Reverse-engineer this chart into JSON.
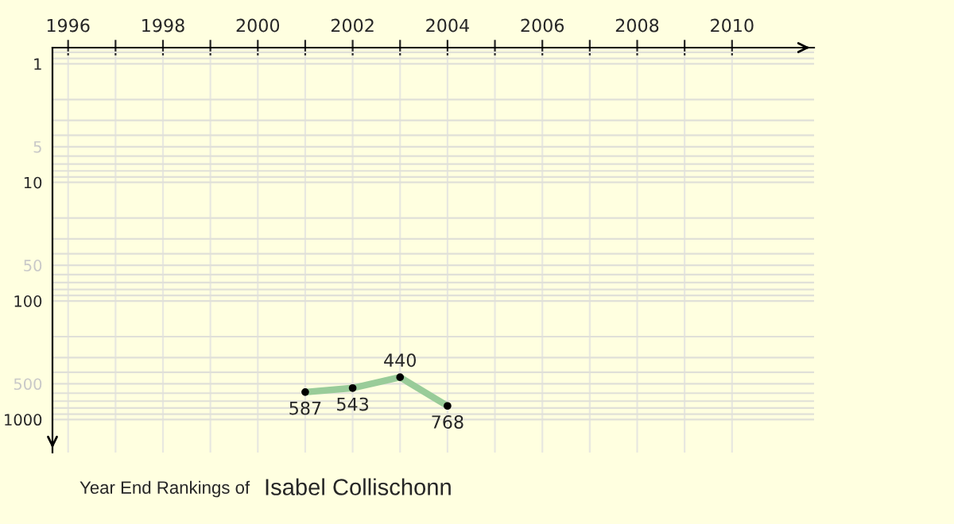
{
  "chart_data": {
    "type": "line",
    "x": [
      2001,
      2002,
      2003,
      2004
    ],
    "series": [
      {
        "color": "#99cc99",
        "values": [
          587,
          543,
          440,
          768
        ]
      }
    ],
    "xlim": [
      1995.67,
      2011.73
    ],
    "xticks": [
      1996,
      {
        "value": 1997,
        "label": null
      },
      1998,
      {
        "value": 1999,
        "label": null
      },
      2000,
      {
        "value": 2001,
        "label": null
      },
      2002,
      {
        "value": 2003,
        "label": null
      },
      2004,
      {
        "value": 2005,
        "label": null
      },
      2006,
      {
        "value": 2007,
        "label": null
      },
      2008,
      {
        "value": 2009,
        "label": null
      },
      2010
    ],
    "ylim": [
      1900,
      0.73
    ],
    "yticks": [
      1,
      5,
      10,
      50,
      100,
      500,
      1000
    ],
    "log": "y",
    "grid": true,
    "marker": "circle",
    "line_style": "solid",
    "data_labels": true,
    "annotations": [
      "Year End Rankings of",
      "Isabel Collischonn"
    ]
  }
}
